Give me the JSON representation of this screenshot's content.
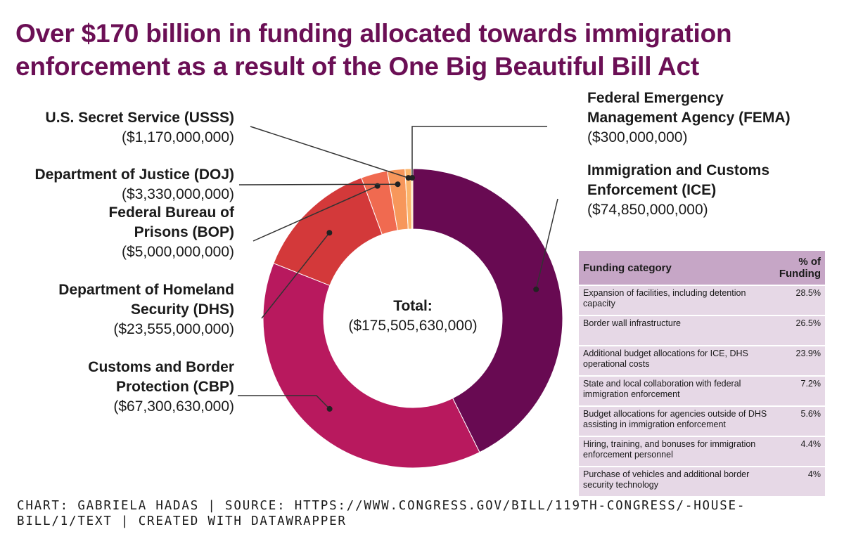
{
  "title": "Over $170 billion in funding allocated towards immigration enforcement as a result of the One Big Beautiful Bill Act",
  "credit": "CHART: GABRIELA HADAS | SOURCE: HTTPS://WWW.CONGRESS.GOV/BILL/119TH-CONGRESS/-HOUSE-BILL/1/TEXT | CREATED WITH DATAWRAPPER",
  "chart_data": {
    "type": "pie",
    "variant": "donut",
    "center_title": "Total:",
    "center_value": "($175,505,630,000)",
    "slices": [
      {
        "name_lines": [
          "Immigration and Customs",
          "Enforcement (ICE)"
        ],
        "value_text": "($74,850,000,000)",
        "value": 74850000000,
        "color": "#680a52"
      },
      {
        "name_lines": [
          "Customs and Border",
          "Protection (CBP)"
        ],
        "value_text": "($67,300,630,000)",
        "value": 67300630000,
        "color": "#b8195e"
      },
      {
        "name_lines": [
          "Department of Homeland",
          "Security (DHS)"
        ],
        "value_text": "($23,555,000,000)",
        "value": 23555000000,
        "color": "#d3393a"
      },
      {
        "name_lines": [
          "Federal Bureau of",
          "Prisons (BOP)"
        ],
        "value_text": "($5,000,000,000)",
        "value": 5000000000,
        "color": "#f06a50"
      },
      {
        "name_lines": [
          "Department of Justice (DOJ)"
        ],
        "value_text": "($3,330,000,000)",
        "value": 3330000000,
        "color": "#f7975b"
      },
      {
        "name_lines": [
          "U.S. Secret Service (USSS)"
        ],
        "value_text": "($1,170,000,000)",
        "value": 1170000000,
        "color": "#fbb56b"
      },
      {
        "name_lines": [
          "Federal Emergency",
          "Management Agency (FEMA)"
        ],
        "value_text": "($300,000,000)",
        "value": 300000000,
        "color": "#fdd9a0"
      }
    ]
  },
  "table": {
    "headers": [
      "Funding category",
      "% of Funding"
    ],
    "rows": [
      {
        "category": "Expansion of facilities, including detention capacity",
        "percent": "28.5%"
      },
      {
        "category": "Border wall infrastructure",
        "percent": "26.5%"
      },
      {
        "category": "Additional budget allocations for ICE, DHS operational costs",
        "percent": "23.9%"
      },
      {
        "category": "State and local collaboration with federal immigration enforcement",
        "percent": "7.2%"
      },
      {
        "category": "Budget allocations for agencies outside of DHS assisting in immigration enforcement",
        "percent": "5.6%"
      },
      {
        "category": "Hiring, training, and bonuses for immigration enforcement personnel",
        "percent": "4.4%"
      },
      {
        "category": "Purchase of vehicles and additional border security technology",
        "percent": "4%"
      }
    ]
  }
}
